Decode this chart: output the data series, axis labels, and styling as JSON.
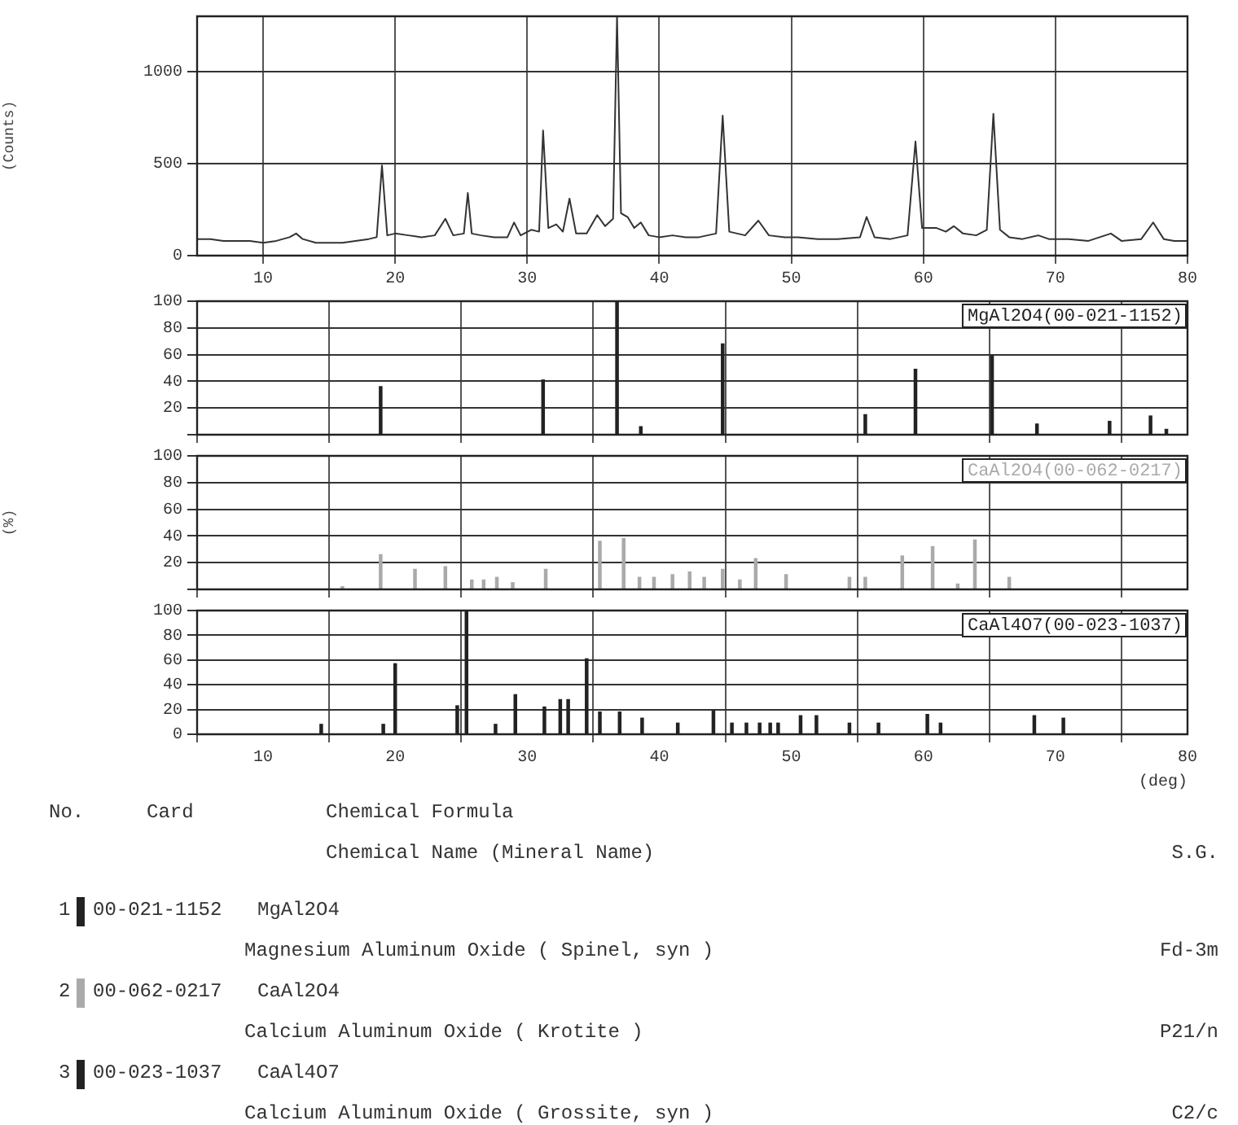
{
  "chart_data": [
    {
      "type": "line",
      "ylabel": "(Counts)",
      "xlim": [
        5,
        80
      ],
      "xticks": [
        10,
        20,
        30,
        40,
        50,
        60,
        70,
        80
      ],
      "ylim": [
        0,
        1300
      ],
      "yticks": [
        0,
        500,
        1000
      ],
      "grid": true,
      "legend": false,
      "marker": "none",
      "line_style": "solid",
      "series": [
        {
          "color": "#333333",
          "x": [
            5,
            6,
            7,
            8,
            9,
            10,
            11,
            12,
            12.5,
            13,
            14,
            15,
            16,
            17,
            18,
            18.6,
            19,
            19.4,
            20,
            21,
            22,
            23,
            23.8,
            24.4,
            25.2,
            25.5,
            25.8,
            26.5,
            27.5,
            28.5,
            29,
            29.5,
            30.3,
            30.9,
            31.2,
            31.6,
            32.2,
            32.7,
            33.2,
            33.7,
            34.5,
            35.3,
            35.9,
            36.5,
            36.8,
            37.1,
            37.6,
            38.1,
            38.6,
            39.2,
            40,
            41,
            42,
            43,
            44.3,
            44.8,
            45.3,
            46.5,
            47.5,
            48.3,
            49.5,
            50.5,
            52,
            53.5,
            55.2,
            55.7,
            56.3,
            57.5,
            58.8,
            59.4,
            59.9,
            61,
            61.7,
            62.3,
            63,
            64,
            64.8,
            65.3,
            65.8,
            66.5,
            67.5,
            68.7,
            69.5,
            71,
            72.5,
            74.2,
            75,
            76.5,
            77.4,
            78.2,
            79,
            80
          ],
          "values": [
            90,
            90,
            80,
            80,
            80,
            70,
            80,
            100,
            120,
            90,
            70,
            70,
            70,
            80,
            90,
            100,
            490,
            110,
            120,
            110,
            100,
            110,
            200,
            110,
            120,
            340,
            120,
            110,
            100,
            100,
            180,
            110,
            140,
            130,
            680,
            150,
            170,
            130,
            310,
            120,
            120,
            220,
            160,
            200,
            1300,
            230,
            210,
            150,
            180,
            110,
            100,
            110,
            100,
            100,
            120,
            760,
            130,
            110,
            190,
            110,
            100,
            100,
            90,
            90,
            100,
            210,
            100,
            90,
            110,
            620,
            150,
            150,
            130,
            160,
            120,
            110,
            140,
            770,
            140,
            100,
            90,
            110,
            90,
            90,
            80,
            120,
            80,
            90,
            180,
            90,
            80,
            80
          ]
        }
      ]
    },
    {
      "type": "bar",
      "annotations": [
        "MgAl2O4(00-021-1152)"
      ],
      "xlim": [
        5,
        80
      ],
      "xticks": [
        10,
        20,
        30,
        40,
        50,
        60,
        70,
        80
      ],
      "ylim": [
        0,
        100
      ],
      "yticks": [
        {
          "value": 0,
          "label": null
        },
        20,
        40,
        60,
        80,
        100
      ],
      "grid": true,
      "legend": false,
      "tick_labels": "y",
      "series": [
        {
          "color": "#222222",
          "x": [
            18.9,
            31.2,
            36.8,
            38.6,
            44.8,
            55.6,
            59.4,
            65.2,
            68.6,
            74.1,
            77.2,
            78.4
          ],
          "values": [
            36,
            41,
            100,
            6,
            68,
            15,
            49,
            59,
            8,
            10,
            14,
            4
          ]
        }
      ]
    },
    {
      "type": "bar",
      "annotations": [
        "CaAl2O4(00-062-0217)"
      ],
      "ylabel": "(%)",
      "xlim": [
        5,
        80
      ],
      "xticks": [
        10,
        20,
        30,
        40,
        50,
        60,
        70,
        80
      ],
      "ylim": [
        0,
        100
      ],
      "yticks": [
        {
          "value": 0,
          "label": null
        },
        20,
        40,
        60,
        80,
        100
      ],
      "grid": true,
      "legend": false,
      "tick_labels": "y",
      "series": [
        {
          "color": "#aaaaaa",
          "x": [
            16.0,
            18.9,
            21.5,
            23.8,
            25.8,
            26.7,
            27.7,
            28.9,
            31.4,
            35.5,
            37.3,
            38.5,
            39.6,
            41.0,
            42.3,
            43.4,
            44.8,
            46.1,
            47.3,
            49.6,
            54.4,
            55.6,
            58.4,
            60.7,
            62.6,
            63.9,
            66.5
          ],
          "values": [
            2,
            26,
            15,
            17,
            7,
            7,
            9,
            5,
            15,
            36,
            38,
            9,
            9,
            11,
            13,
            9,
            15,
            7,
            23,
            11,
            9,
            9,
            25,
            32,
            4,
            37,
            9
          ]
        }
      ]
    },
    {
      "type": "bar",
      "annotations": [
        "CaAl4O7(00-023-1037)"
      ],
      "xlabel": "(deg)",
      "xlim": [
        5,
        80
      ],
      "xticks": [
        10,
        20,
        30,
        40,
        50,
        60,
        70,
        80
      ],
      "ylim": [
        0,
        100
      ],
      "yticks": [
        0,
        20,
        40,
        60,
        80,
        100
      ],
      "grid": true,
      "legend": false,
      "series": [
        {
          "color": "#222222",
          "x": [
            14.4,
            19.1,
            20.0,
            24.7,
            25.4,
            27.6,
            29.1,
            31.3,
            32.5,
            33.1,
            34.5,
            35.5,
            37.0,
            38.7,
            41.4,
            44.1,
            45.5,
            46.6,
            47.6,
            48.4,
            49.0,
            50.7,
            51.9,
            54.4,
            56.6,
            60.3,
            61.3,
            68.4,
            70.6
          ],
          "values": [
            8,
            8,
            57,
            23,
            100,
            8,
            32,
            22,
            28,
            28,
            61,
            18,
            18,
            13,
            9,
            19,
            9,
            9,
            9,
            9,
            9,
            15,
            15,
            9,
            9,
            16,
            9,
            15,
            13
          ]
        }
      ]
    },
    {
      "type": "other",
      "annotations": [
        "No.",
        "Card",
        "Chemical Formula",
        "Chemical Name (Mineral Name)",
        "S.G.",
        "1",
        "00-021-1152",
        "MgAl2O4",
        "Magnesium Aluminum Oxide ( Spinel, syn )",
        "Fd-3m",
        "2",
        "00-062-0217",
        "CaAl2O4",
        "Calcium Aluminum Oxide ( Krotite )",
        "P21/n",
        "3",
        "00-023-1037",
        "CaAl4O7",
        "Calcium Aluminum Oxide ( Grossite, syn )",
        "C2/c"
      ]
    }
  ]
}
